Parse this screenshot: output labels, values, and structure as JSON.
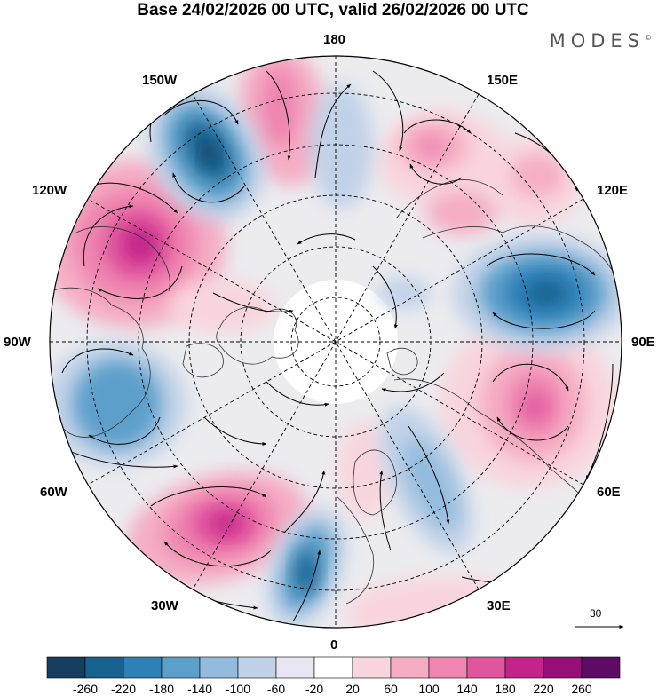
{
  "title": "Base 24/02/2026 00 UTC, valid 26/02/2026 00 UTC",
  "brand": "MODES",
  "brand_mark": "©",
  "longitude_labels": {
    "lon_180": "180",
    "lon_150e": "150E",
    "lon_120e": "120E",
    "lon_90e": "90E",
    "lon_60e": "60E",
    "lon_30e": "30E",
    "lon_0": "0",
    "lon_30w": "30W",
    "lon_60w": "60W",
    "lon_90w": "90W",
    "lon_120w": "120W",
    "lon_150w": "150W"
  },
  "wind_reference": {
    "value": "30"
  },
  "colorbar": {
    "labels": [
      "-260",
      "-220",
      "-180",
      "-140",
      "-100",
      "-60",
      "-20",
      "20",
      "60",
      "100",
      "140",
      "180",
      "220",
      "260"
    ],
    "colors": [
      "#163e5e",
      "#17628f",
      "#2f80b7",
      "#5d9fcb",
      "#92bbdd",
      "#c1d2e8",
      "#e6e5f1",
      "#ffffff",
      "#f9d5dd",
      "#f5adc4",
      "#ef85b0",
      "#e0569e",
      "#c4238a",
      "#960f76",
      "#5e0b66"
    ]
  },
  "colors": {
    "land_outline": "#333333",
    "grid": "#000000",
    "arrow": "#000000"
  }
}
